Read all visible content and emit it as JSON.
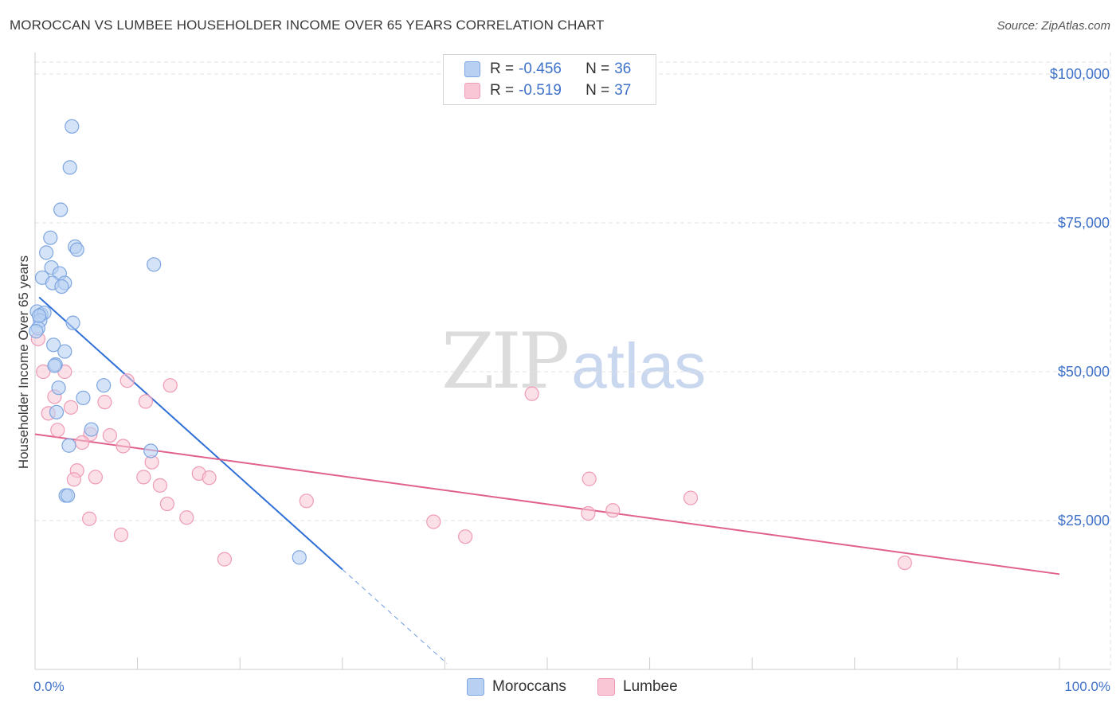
{
  "title": "MOROCCAN VS LUMBEE HOUSEHOLDER INCOME OVER 65 YEARS CORRELATION CHART",
  "source": "Source: ZipAtlas.com",
  "watermark": {
    "zip": "ZIP",
    "atlas": "atlas"
  },
  "legend": {
    "rows": [
      {
        "r_label": "R =",
        "r_value": "-0.456",
        "n_label": "N =",
        "n_value": "36"
      },
      {
        "r_label": "R =",
        "r_value": "-0.519",
        "n_label": "N =",
        "n_value": "37"
      }
    ]
  },
  "bottom_legend": {
    "moroccans": "Moroccans",
    "lumbee": "Lumbee"
  },
  "colors": {
    "moroccans_fill": "#b8d0f2",
    "moroccans_stroke": "#7ea6e0",
    "moroccans_line": "#2f6fd6",
    "lumbee_fill": "#f9c6d5",
    "lumbee_stroke": "#ee9bb5",
    "lumbee_line": "#e0628c",
    "axis_text": "#3f72c8",
    "grid": "#e2e2e2"
  },
  "chart_data": {
    "type": "scatter",
    "title": "MOROCCAN VS LUMBEE HOUSEHOLDER INCOME OVER 65 YEARS CORRELATION CHART",
    "xlabel": "",
    "ylabel": "Householder Income Over 65 years",
    "x_tick_labels": [
      "0.0%",
      "100.0%"
    ],
    "y_tick_labels": [
      "$25,000",
      "$50,000",
      "$75,000",
      "$100,000"
    ],
    "y_ticks": [
      25000,
      50000,
      75000,
      100000
    ],
    "xlim": [
      0,
      100
    ],
    "ylim": [
      0,
      102000
    ],
    "series": [
      {
        "name": "Moroccans",
        "r": -0.456,
        "n": 36,
        "trend": {
          "x0": 0.4,
          "y0": 62500,
          "x1": 30,
          "y1": 16800,
          "dash_to_x": 40.2,
          "dash_to_y": 1000
        },
        "points": [
          [
            3.6,
            91200
          ],
          [
            3.4,
            84300
          ],
          [
            2.5,
            77200
          ],
          [
            1.5,
            72500
          ],
          [
            3.9,
            71000
          ],
          [
            1.1,
            70000
          ],
          [
            4.1,
            70500
          ],
          [
            11.6,
            68000
          ],
          [
            1.6,
            67500
          ],
          [
            2.4,
            66500
          ],
          [
            0.7,
            65800
          ],
          [
            1.7,
            64900
          ],
          [
            2.9,
            64900
          ],
          [
            2.6,
            64300
          ],
          [
            0.2,
            60100
          ],
          [
            0.6,
            59600
          ],
          [
            0.9,
            59900
          ],
          [
            0.5,
            58600
          ],
          [
            3.7,
            58200
          ],
          [
            0.3,
            57300
          ],
          [
            0.1,
            56800
          ],
          [
            1.8,
            54500
          ],
          [
            2.9,
            53400
          ],
          [
            2.0,
            51200
          ],
          [
            1.9,
            51000
          ],
          [
            6.7,
            47700
          ],
          [
            2.3,
            47300
          ],
          [
            4.7,
            45600
          ],
          [
            2.1,
            43200
          ],
          [
            5.5,
            40300
          ],
          [
            3.3,
            37600
          ],
          [
            11.3,
            36700
          ],
          [
            3.0,
            29200
          ],
          [
            3.2,
            29200
          ],
          [
            25.8,
            18800
          ],
          [
            0.4,
            59400
          ]
        ]
      },
      {
        "name": "Lumbee",
        "r": -0.519,
        "n": 37,
        "trend": {
          "x0": 0.0,
          "y0": 39500,
          "x1": 100,
          "y1": 16000
        },
        "points": [
          [
            0.3,
            55500
          ],
          [
            0.8,
            50000
          ],
          [
            2.9,
            50000
          ],
          [
            9.0,
            48500
          ],
          [
            13.2,
            47700
          ],
          [
            48.5,
            46300
          ],
          [
            1.9,
            45800
          ],
          [
            10.8,
            45000
          ],
          [
            6.8,
            44900
          ],
          [
            3.5,
            44000
          ],
          [
            1.3,
            43000
          ],
          [
            2.2,
            40200
          ],
          [
            5.4,
            39500
          ],
          [
            7.3,
            39300
          ],
          [
            4.6,
            38100
          ],
          [
            8.6,
            37500
          ],
          [
            11.4,
            34800
          ],
          [
            4.1,
            33400
          ],
          [
            16.0,
            32900
          ],
          [
            17.0,
            32200
          ],
          [
            5.9,
            32300
          ],
          [
            10.6,
            32300
          ],
          [
            3.8,
            31900
          ],
          [
            54.1,
            32000
          ],
          [
            12.2,
            30900
          ],
          [
            64.0,
            28800
          ],
          [
            26.5,
            28300
          ],
          [
            12.9,
            27800
          ],
          [
            56.4,
            26700
          ],
          [
            54.0,
            26200
          ],
          [
            14.8,
            25500
          ],
          [
            5.3,
            25300
          ],
          [
            38.9,
            24800
          ],
          [
            8.4,
            22600
          ],
          [
            42.0,
            22300
          ],
          [
            18.5,
            18500
          ],
          [
            84.9,
            17900
          ]
        ]
      }
    ]
  }
}
